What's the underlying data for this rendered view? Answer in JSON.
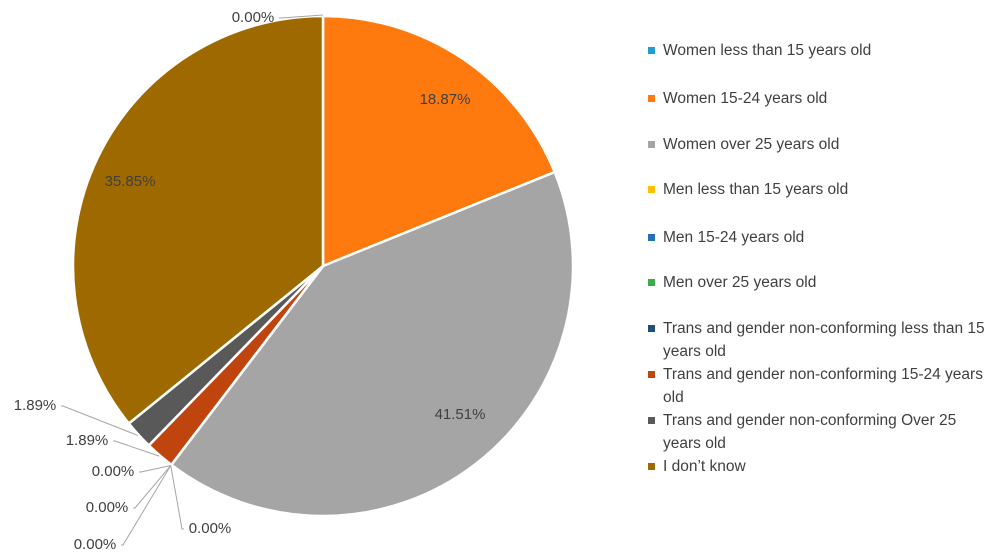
{
  "chart_data": {
    "type": "pie",
    "categories": [
      "Women less than 15 years old",
      "Women 15-24 years old",
      "Women over 25 years old",
      "Men less than 15 years old",
      "Men 15-24 years old",
      "Men over 25 years old",
      "Trans and gender non-conforming less than 15 years old",
      "Trans and gender non-conforming 15-24 years old",
      "Trans and gender non-conforming Over 25 years old",
      "I don’t know"
    ],
    "values": [
      0,
      18.87,
      41.51,
      0,
      0,
      0,
      0,
      1.89,
      1.89,
      35.85
    ],
    "value_labels": [
      "0.00%",
      "18.87%",
      "41.51%",
      "0.00%",
      "0.00%",
      "0.00%",
      "0.00%",
      "1.89%",
      "1.89%",
      "35.85%"
    ],
    "colors": [
      "#1f9ed6",
      "#fe7a0f",
      "#a5a5a5",
      "#ffc000",
      "#2470b5",
      "#3cab4a",
      "#1f4e79",
      "#c0440d",
      "#595959",
      "#9e6a00"
    ],
    "legend": "right"
  }
}
